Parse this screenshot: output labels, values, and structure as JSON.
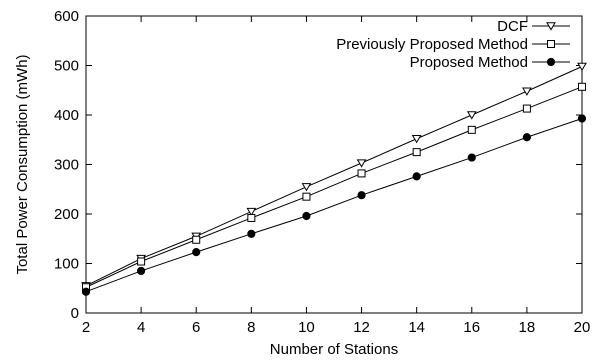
{
  "chart_data": {
    "type": "line",
    "title": "",
    "xlabel": "Number of Stations",
    "ylabel": "Total Power Consumption (mWh)",
    "xlim": [
      2,
      20
    ],
    "ylim": [
      0,
      600
    ],
    "x_ticks": [
      2,
      4,
      6,
      8,
      10,
      12,
      14,
      16,
      18,
      20
    ],
    "y_ticks": [
      0,
      100,
      200,
      300,
      400,
      500,
      600
    ],
    "grid": false,
    "legend_position": "top-right",
    "x": [
      2,
      4,
      6,
      8,
      10,
      12,
      14,
      16,
      18,
      20
    ],
    "series": [
      {
        "name": "DCF",
        "marker": "triangle-down-open",
        "color": "#000000",
        "values": [
          55,
          110,
          155,
          205,
          255,
          303,
          352,
          400,
          448,
          498
        ]
      },
      {
        "name": "Previously Proposed Method",
        "marker": "square-open",
        "color": "#000000",
        "values": [
          52,
          104,
          148,
          192,
          235,
          282,
          325,
          370,
          413,
          457
        ]
      },
      {
        "name": "Proposed Method",
        "marker": "circle-filled",
        "color": "#000000",
        "values": [
          43,
          85,
          123,
          160,
          196,
          238,
          276,
          314,
          355,
          393
        ]
      }
    ]
  }
}
